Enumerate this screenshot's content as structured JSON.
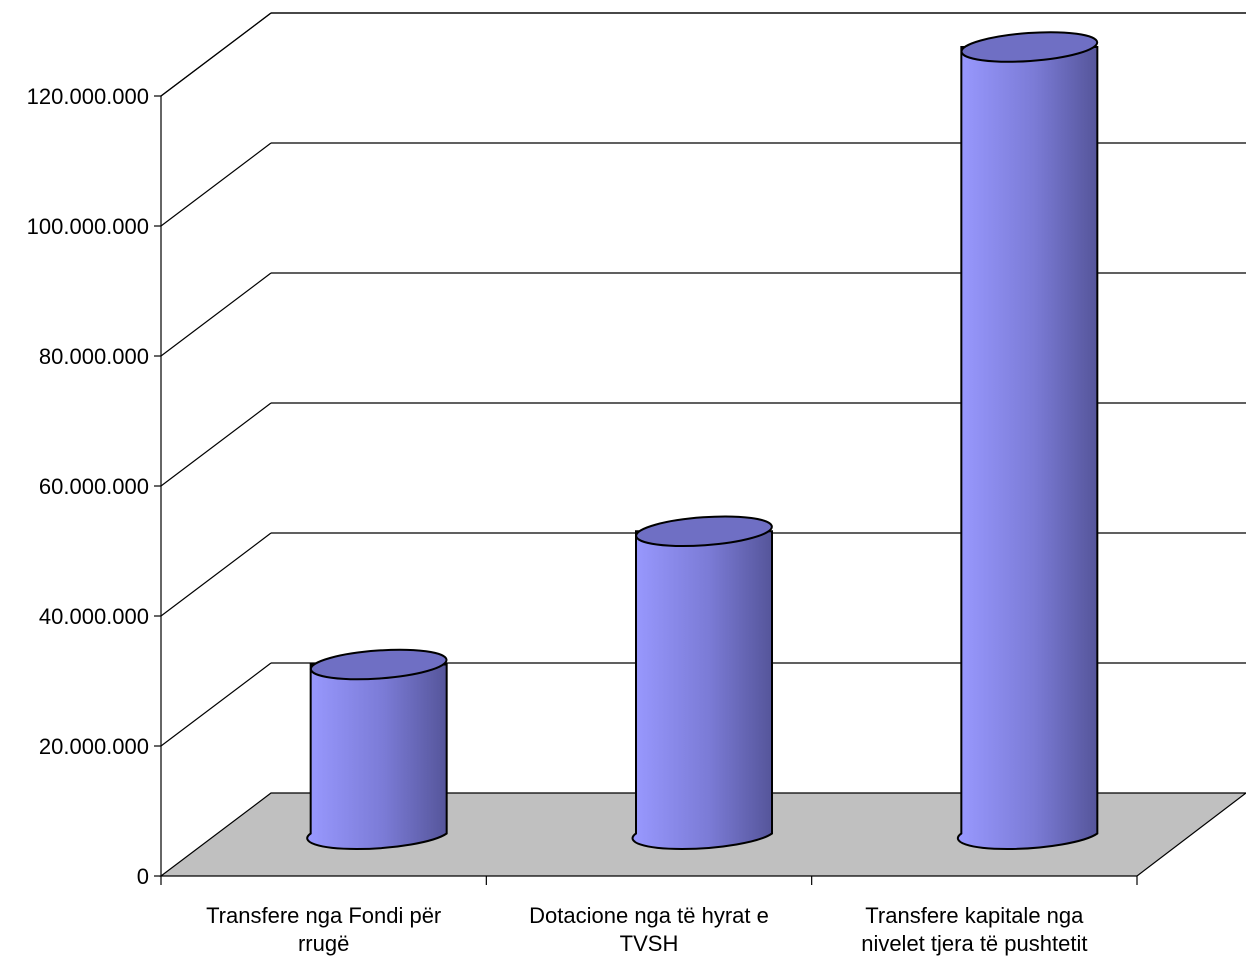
{
  "chart_data": {
    "type": "bar",
    "style": "3d-cylinder",
    "categories": [
      [
        "Transfere nga Fondi për",
        "rrugë"
      ],
      [
        "Dotacione nga të hyrat e",
        "TVSH"
      ],
      [
        "Transfere kapitale nga",
        "nivelet tjera të pushtetit"
      ]
    ],
    "values": [
      26000000,
      46500000,
      121000000
    ],
    "title": "",
    "xlabel": "",
    "ylabel": "",
    "ylim": [
      0,
      120000000
    ],
    "yticks": [
      0,
      20000000,
      40000000,
      60000000,
      80000000,
      100000000,
      120000000
    ],
    "ytick_labels": [
      "0",
      "20.000.000",
      "40.000.000",
      "60.000.000",
      "80.000.000",
      "100.000.000",
      "120.000.000"
    ],
    "grid": true,
    "legend": "none",
    "colors": {
      "bar_light": "#9999ff",
      "bar_dark": "#55559a",
      "bar_top": "#6f6fc4",
      "floor": "#c0c0c0",
      "grid": "#000000"
    }
  }
}
